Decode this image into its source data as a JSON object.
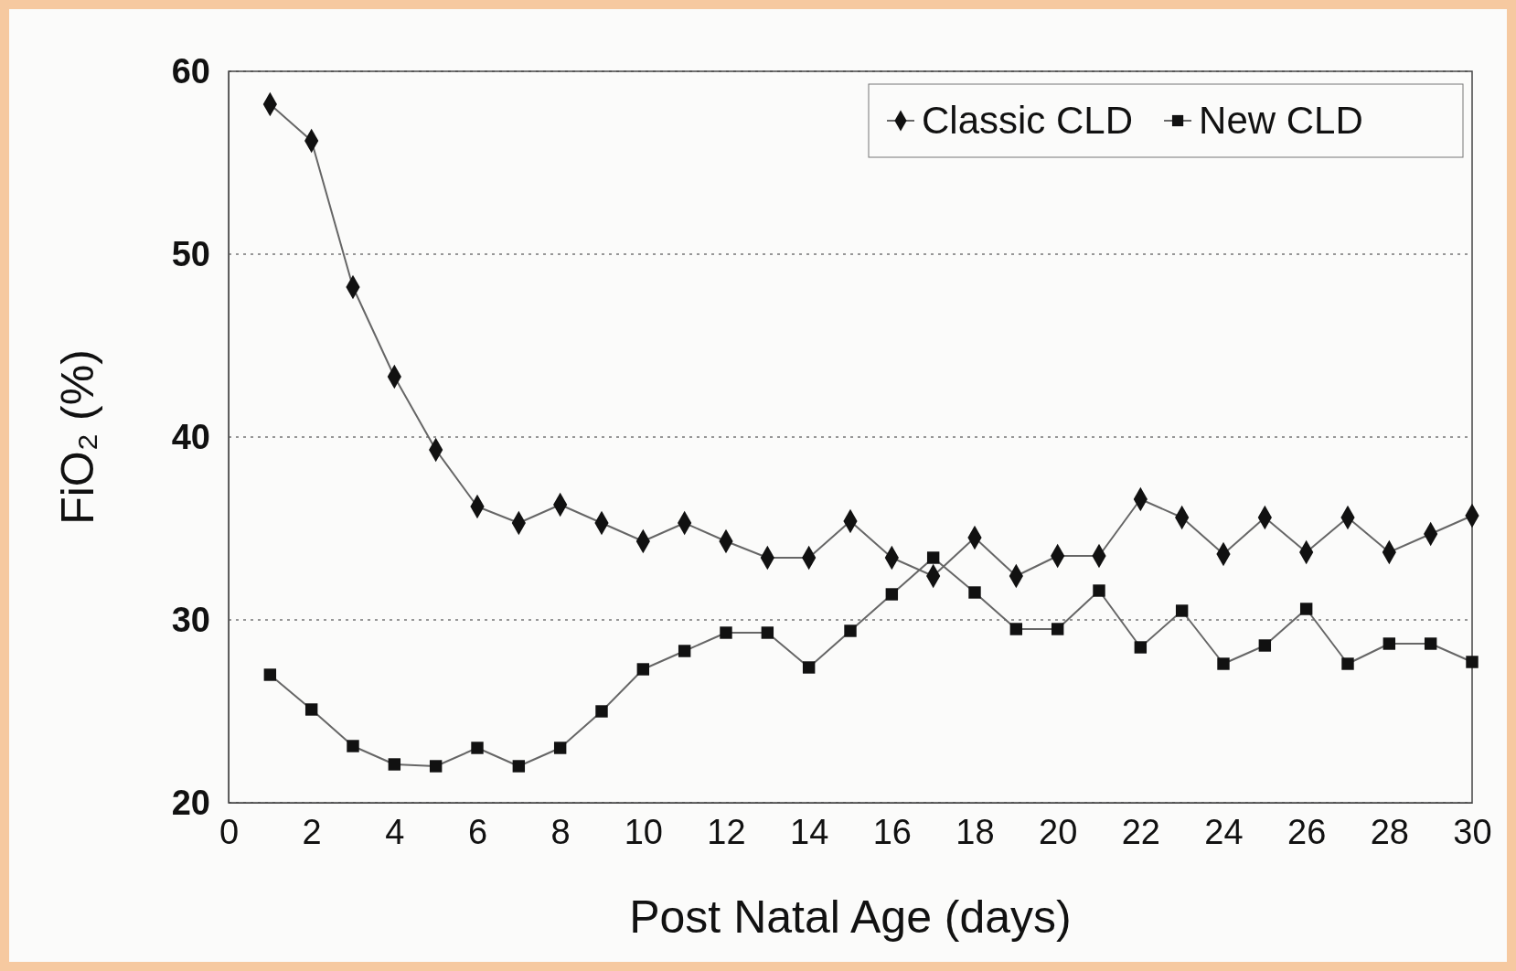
{
  "chart_data": {
    "type": "line",
    "xlabel": "Post Natal Age (days)",
    "ylabel": "FiO₂ (%)",
    "x": [
      1,
      2,
      3,
      4,
      5,
      6,
      7,
      8,
      9,
      10,
      11,
      12,
      13,
      14,
      15,
      16,
      17,
      18,
      19,
      20,
      21,
      22,
      23,
      24,
      25,
      26,
      27,
      28,
      29,
      30
    ],
    "series": [
      {
        "name": "Classic CLD",
        "color": "#111111",
        "marker": "diamond",
        "values": [
          58.2,
          56.2,
          48.2,
          43.3,
          39.3,
          36.2,
          35.3,
          36.3,
          35.3,
          34.3,
          35.3,
          34.3,
          33.4,
          33.4,
          35.4,
          33.4,
          32.4,
          34.5,
          32.4,
          33.5,
          33.5,
          36.6,
          35.6,
          33.6,
          35.6,
          33.7,
          35.6,
          33.7,
          34.7,
          35.7
        ]
      },
      {
        "name": "New CLD",
        "color": "#111111",
        "marker": "square",
        "values": [
          27.0,
          25.1,
          23.1,
          22.1,
          22.0,
          23.0,
          22.0,
          23.0,
          25.0,
          27.3,
          28.3,
          29.3,
          29.3,
          27.4,
          29.4,
          31.4,
          33.4,
          31.5,
          29.5,
          29.5,
          31.6,
          28.5,
          30.5,
          27.6,
          28.6,
          30.6,
          27.6,
          28.7,
          28.7,
          27.7
        ]
      }
    ],
    "xlim": [
      0,
      30
    ],
    "xticks": [
      0,
      2,
      4,
      6,
      8,
      10,
      12,
      14,
      16,
      18,
      20,
      22,
      24,
      26,
      28,
      30
    ],
    "ylim": [
      20,
      60
    ],
    "yticks": [
      20,
      30,
      40,
      50,
      60
    ],
    "grid": "y",
    "legend": "top right",
    "line_style": "solid"
  }
}
